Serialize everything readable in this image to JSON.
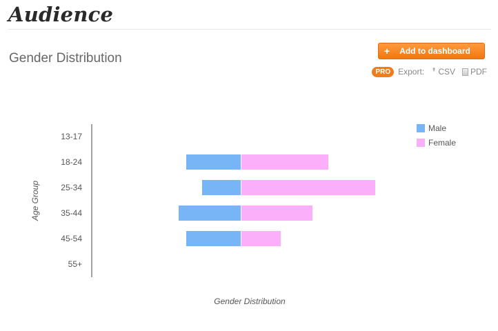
{
  "app": {
    "title": "Audience"
  },
  "section": {
    "title": "Gender Distribution"
  },
  "toolbar": {
    "add_plus": "+",
    "add_label": "Add to dashboard",
    "pro_badge": "PRO",
    "export_label": "Export:",
    "csv_label": "CSV",
    "pdf_label": "PDF"
  },
  "colors": {
    "male": "#78b5f6",
    "female": "#fbaef9",
    "accent": "#f2770f"
  },
  "icons": {
    "csv": "csv-icon",
    "pdf": "pdf-icon"
  },
  "chart_data": {
    "type": "bar",
    "orientation": "horizontal",
    "stacked": "diverging",
    "title": "",
    "xlabel": "Gender Distribution",
    "ylabel": "Age Group",
    "categories": [
      "13-17",
      "18-24",
      "25-34",
      "35-44",
      "45-54",
      "55+"
    ],
    "series": [
      {
        "name": "Male",
        "color": "#78b5f6",
        "values": [
          0,
          79,
          56,
          90,
          79,
          0
        ]
      },
      {
        "name": "Female",
        "color": "#fbaef9",
        "values": [
          0,
          126,
          194,
          103,
          57,
          0
        ]
      }
    ],
    "legend": {
      "position": "top-right",
      "entries": [
        "Male",
        "Female"
      ]
    },
    "grid": false
  }
}
